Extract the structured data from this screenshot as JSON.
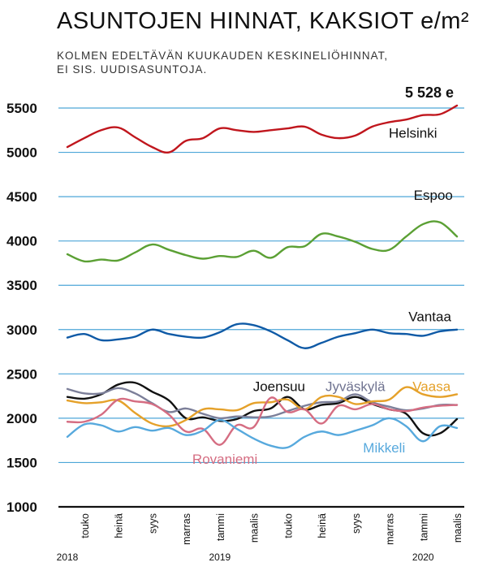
{
  "header": {
    "title": "ASUNTOJEN HINNAT, KAKSIOT e/m²",
    "subtitle_line1": "KOLMEN EDELTÄVÄN KUUKAUDEN KESKINELIÖHINNAT,",
    "subtitle_line2": "EI SIS. UUDISASUNTOJA."
  },
  "chart_data": {
    "type": "line",
    "title": "ASUNTOJEN HINNAT, KAKSIOT e/m²",
    "subtitle": "KOLMEN EDELTÄVÄN KUUKAUDEN KESKINELIÖHINNAT, EI SIS. UUDISASUNTOJA.",
    "xlabel": "",
    "ylabel": "",
    "ylim": [
      1000,
      5500
    ],
    "yticks": [
      "1000",
      "1500",
      "2000",
      "2500",
      "3000",
      "3500",
      "4000",
      "4500",
      "5000",
      "5500"
    ],
    "grid": "horizontal",
    "x": [
      "2018-04",
      "2018-05",
      "2018-06",
      "2018-07",
      "2018-08",
      "2018-09",
      "2018-10",
      "2018-11",
      "2018-12",
      "2019-01",
      "2019-02",
      "2019-03",
      "2019-04",
      "2019-05",
      "2019-06",
      "2019-07",
      "2019-08",
      "2019-09",
      "2019-10",
      "2019-11",
      "2019-12",
      "2020-01",
      "2020-02",
      "2020-03"
    ],
    "xtick_labels": [
      {
        "label": "touko",
        "index": 1
      },
      {
        "label": "heinä",
        "index": 3
      },
      {
        "label": "syys",
        "index": 5
      },
      {
        "label": "marras",
        "index": 7
      },
      {
        "label": "tammi",
        "index": 9
      },
      {
        "label": "maalis",
        "index": 11
      },
      {
        "label": "touko",
        "index": 13
      },
      {
        "label": "heinä",
        "index": 15
      },
      {
        "label": "syys",
        "index": 17
      },
      {
        "label": "marras",
        "index": 19
      },
      {
        "label": "tammi",
        "index": 21
      },
      {
        "label": "maalis",
        "index": 23
      }
    ],
    "year_labels": [
      {
        "label": "2018",
        "index": 0
      },
      {
        "label": "2019",
        "index": 9
      },
      {
        "label": "2020",
        "index": 21
      }
    ],
    "end_annotation": {
      "text": "5 528 e",
      "series": "Helsinki"
    },
    "series": [
      {
        "name": "Helsinki",
        "color": "#c0161d",
        "label_color": "#111111",
        "label_anchor": 20.4,
        "label_value": 5220,
        "values": [
          5060,
          5160,
          5250,
          5280,
          5170,
          5060,
          5000,
          5130,
          5160,
          5270,
          5250,
          5230,
          5250,
          5270,
          5290,
          5200,
          5160,
          5190,
          5290,
          5340,
          5370,
          5420,
          5430,
          5528
        ]
      },
      {
        "name": "Espoo",
        "color": "#5ba034",
        "label_color": "#111111",
        "label_anchor": 21.6,
        "label_value": 4520,
        "values": [
          3850,
          3770,
          3790,
          3780,
          3870,
          3960,
          3900,
          3840,
          3800,
          3830,
          3820,
          3890,
          3810,
          3930,
          3940,
          4080,
          4050,
          3990,
          3910,
          3900,
          4050,
          4190,
          4210,
          4050
        ]
      },
      {
        "name": "Vantaa",
        "color": "#0f5aa6",
        "label_color": "#111111",
        "label_anchor": 21.4,
        "label_value": 3150,
        "values": [
          2910,
          2950,
          2880,
          2890,
          2920,
          3000,
          2950,
          2920,
          2910,
          2970,
          3060,
          3050,
          2980,
          2880,
          2790,
          2850,
          2920,
          2960,
          3000,
          2960,
          2950,
          2930,
          2980,
          3000
        ]
      },
      {
        "name": "Joensuu",
        "color": "#111111",
        "label_color": "#111111",
        "label_anchor": 12.5,
        "label_value": 2360,
        "values": [
          2240,
          2220,
          2270,
          2380,
          2400,
          2300,
          2200,
          2000,
          2010,
          1970,
          1990,
          2080,
          2110,
          2240,
          2100,
          2150,
          2170,
          2240,
          2160,
          2100,
          2050,
          1830,
          1830,
          1990
        ]
      },
      {
        "name": "Jyväskylä",
        "color": "#7c7f99",
        "label_color": "#6f7390",
        "label_anchor": 17.0,
        "label_value": 2360,
        "values": [
          2330,
          2280,
          2280,
          2340,
          2280,
          2170,
          2070,
          2110,
          2050,
          2000,
          2020,
          2010,
          2020,
          2080,
          2140,
          2180,
          2190,
          2270,
          2180,
          2130,
          2090,
          2110,
          2150,
          2150
        ]
      },
      {
        "name": "Vaasa",
        "color": "#e5a12a",
        "label_color": "#e5a12a",
        "label_anchor": 21.5,
        "label_value": 2360,
        "values": [
          2200,
          2170,
          2180,
          2200,
          2060,
          1940,
          1910,
          1980,
          2100,
          2100,
          2090,
          2170,
          2180,
          2210,
          2100,
          2240,
          2240,
          2160,
          2190,
          2210,
          2350,
          2270,
          2240,
          2270
        ]
      },
      {
        "name": "Rovaniemi",
        "color": "#d56d82",
        "label_color": "#d56d82",
        "label_anchor": 9.3,
        "label_value": 1540,
        "values": [
          1960,
          1960,
          2040,
          2210,
          2190,
          2160,
          2040,
          1850,
          1880,
          1700,
          1920,
          1900,
          2230,
          2070,
          2100,
          1940,
          2140,
          2100,
          2160,
          2100,
          2080,
          2120,
          2140,
          2150
        ]
      },
      {
        "name": "Mikkeli",
        "color": "#57a9dd",
        "label_color": "#57a9dd",
        "label_anchor": 18.7,
        "label_value": 1670,
        "values": [
          1790,
          1930,
          1920,
          1850,
          1900,
          1860,
          1890,
          1810,
          1860,
          1980,
          1880,
          1770,
          1690,
          1670,
          1790,
          1850,
          1810,
          1860,
          1920,
          2000,
          1910,
          1740,
          1910,
          1890
        ]
      }
    ]
  }
}
